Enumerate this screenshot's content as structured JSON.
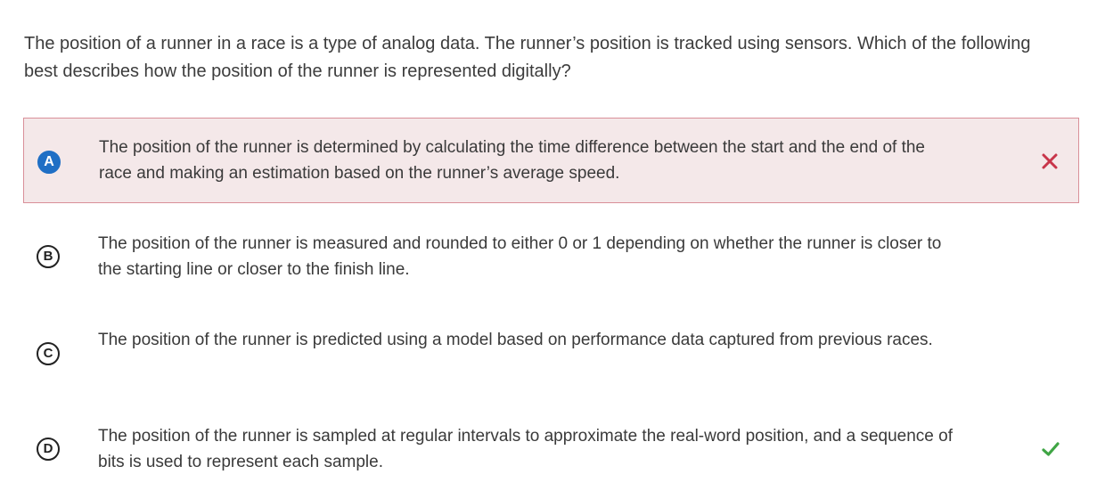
{
  "question": {
    "text": "The position of a runner in a race is a type of analog data. The runner’s position is tracked using sensors. Which of the following best describes how the position of the runner is represented digitally?"
  },
  "options": [
    {
      "letter": "A",
      "text": "The position of the runner is determined by calculating the time difference between the start and the end of the race and making an estimation based on the runner’s average speed.",
      "selected": true,
      "result": "incorrect",
      "result_icon": "x-mark-icon"
    },
    {
      "letter": "B",
      "text": "The position of the runner is measured and rounded to either 0 or 1 depending on whether the runner is closer to the starting line or closer to the finish line.",
      "selected": false,
      "result": null
    },
    {
      "letter": "C",
      "text": "The position of the runner is predicted using a model based on performance data captured from previous races.",
      "selected": false,
      "result": null
    },
    {
      "letter": "D",
      "text": "The position of the runner is sampled at regular intervals to approximate the real-word position, and a sequence of bits is used to represent each sample.",
      "selected": false,
      "result": "correct",
      "result_icon": "check-mark-icon"
    }
  ],
  "colors": {
    "selected_badge": "#1f6fc5",
    "incorrect_bg": "#f4e8e9",
    "incorrect_border": "#d98f99",
    "incorrect_mark": "#c8354a",
    "correct_mark": "#3fa544"
  }
}
